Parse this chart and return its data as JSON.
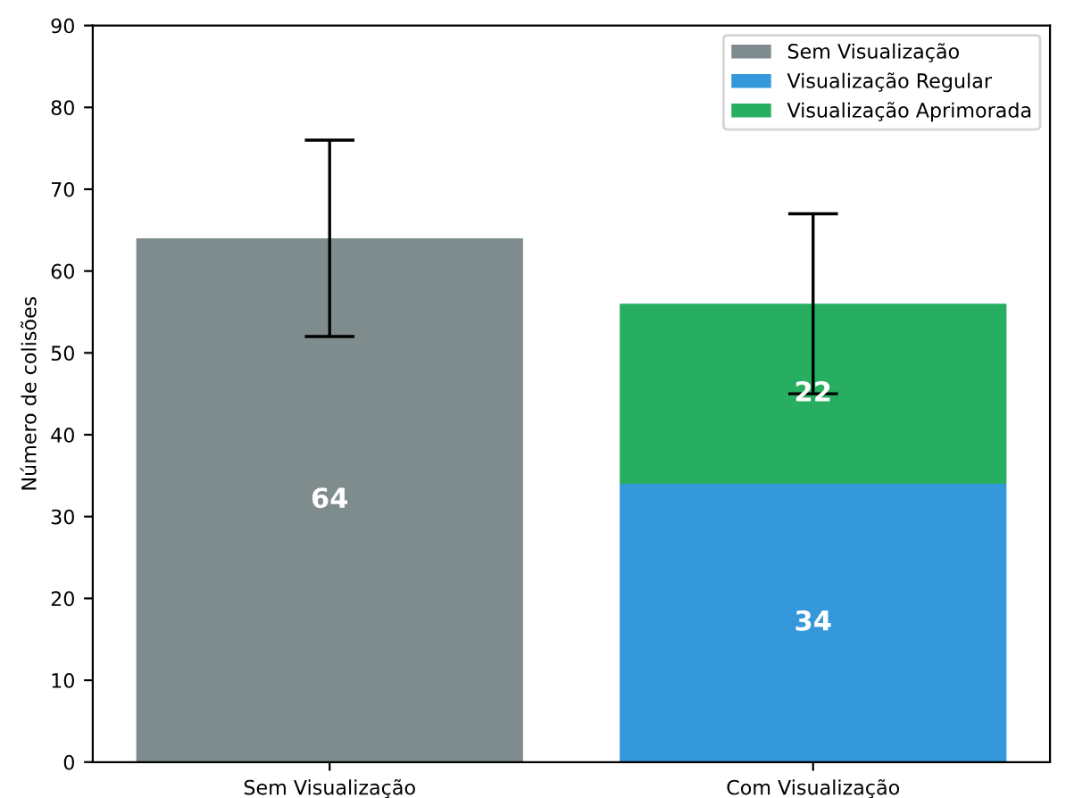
{
  "chart_data": {
    "type": "bar",
    "stacked": true,
    "ylabel": "Número de colisões",
    "categories": [
      "Sem Visualização",
      "Com Visualização"
    ],
    "series": [
      {
        "name": "Sem Visualização",
        "color": "#7f8c8d",
        "values": [
          64,
          null
        ],
        "errors": [
          12,
          null
        ]
      },
      {
        "name": "Visualização Regular",
        "color": "#3498db",
        "values": [
          null,
          34
        ],
        "errors": [
          null,
          null
        ]
      },
      {
        "name": "Visualização Aprimorada",
        "color": "#27ae60",
        "values": [
          null,
          22
        ],
        "errors": [
          null,
          11
        ]
      }
    ],
    "ylim": [
      0,
      90
    ],
    "yticks": [
      0,
      10,
      20,
      30,
      40,
      50,
      60,
      70,
      80,
      90
    ],
    "data_labels": true,
    "legend": "top right",
    "grid": false
  }
}
